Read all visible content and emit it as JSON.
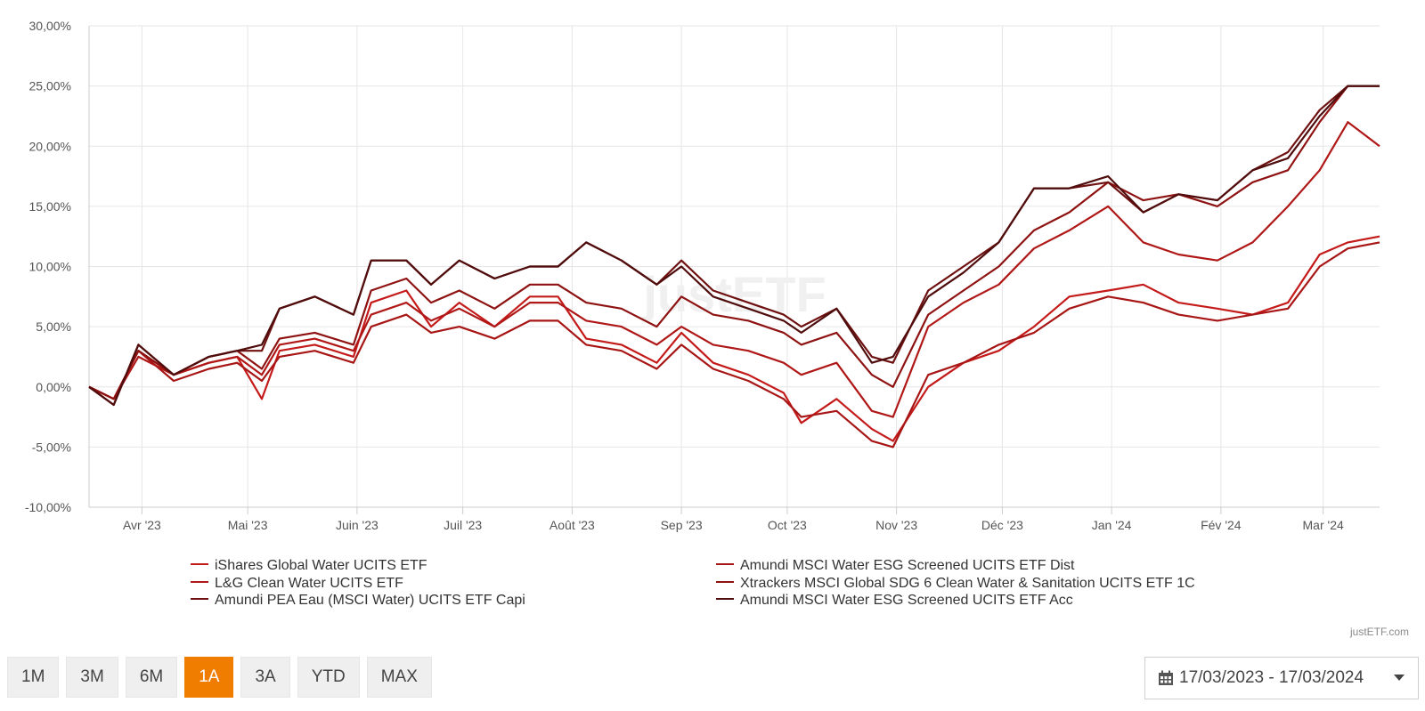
{
  "chart_data": {
    "type": "line",
    "title": "",
    "xlabel": "",
    "ylabel": "",
    "ylim": [
      -10,
      30
    ],
    "x_range": [
      "2023-03-17",
      "2024-03-17"
    ],
    "grid": true,
    "legend_position": "bottom",
    "y_ticks": [
      -10,
      -5,
      0,
      5,
      10,
      15,
      20,
      25,
      30
    ],
    "y_tick_labels": [
      "-10,00%",
      "-5,00%",
      "0,00%",
      "5,00%",
      "10,00%",
      "15,00%",
      "20,00%",
      "25,00%",
      "30,00%"
    ],
    "x_tick_dates": [
      "2023-04-01",
      "2023-05-01",
      "2023-06-01",
      "2023-07-01",
      "2023-08-01",
      "2023-09-01",
      "2023-10-01",
      "2023-11-01",
      "2023-12-01",
      "2024-01-01",
      "2024-02-01",
      "2024-03-01"
    ],
    "x_tick_labels": [
      "Avr '23",
      "Mai '23",
      "Juin '23",
      "Juil '23",
      "Août '23",
      "Sep '23",
      "Oct '23",
      "Nov '23",
      "Déc '23",
      "Jan '24",
      "Fév '24",
      "Mar '24"
    ],
    "watermark": "justETF",
    "series": [
      {
        "name": "iShares Global Water UCITS ETF",
        "color": "#c41a1a",
        "x": [
          "2023-03-17",
          "2023-03-24",
          "2023-03-31",
          "2023-04-10",
          "2023-04-20",
          "2023-04-28",
          "2023-05-05",
          "2023-05-10",
          "2023-05-20",
          "2023-05-31",
          "2023-06-05",
          "2023-06-15",
          "2023-06-22",
          "2023-06-30",
          "2023-07-10",
          "2023-07-20",
          "2023-07-28",
          "2023-08-05",
          "2023-08-15",
          "2023-08-25",
          "2023-09-01",
          "2023-09-10",
          "2023-09-20",
          "2023-09-30",
          "2023-10-05",
          "2023-10-15",
          "2023-10-25",
          "2023-10-31",
          "2023-11-10",
          "2023-11-20",
          "2023-11-30",
          "2023-12-10",
          "2023-12-20",
          "2023-12-31",
          "2024-01-10",
          "2024-01-20",
          "2024-01-31",
          "2024-02-10",
          "2024-02-20",
          "2024-02-29",
          "2024-03-08",
          "2024-03-17"
        ],
        "values": [
          0,
          -1,
          3,
          1,
          2,
          2.5,
          -1,
          3,
          3.5,
          2.5,
          7,
          8,
          5,
          7,
          5,
          7.5,
          7.5,
          4,
          3.5,
          2,
          4.5,
          2,
          1,
          -0.5,
          -3,
          -1,
          -3.5,
          -4.5,
          0,
          2,
          3,
          5,
          7.5,
          8,
          8.5,
          7,
          6.5,
          6,
          7,
          11,
          12,
          12.5
        ]
      },
      {
        "name": "Amundi MSCI Water ESG Screened UCITS ETF Dist",
        "color": "#a81515",
        "x": [
          "2023-03-17",
          "2023-03-24",
          "2023-03-31",
          "2023-04-10",
          "2023-04-20",
          "2023-04-28",
          "2023-05-05",
          "2023-05-10",
          "2023-05-20",
          "2023-05-31",
          "2023-06-05",
          "2023-06-15",
          "2023-06-22",
          "2023-06-30",
          "2023-07-10",
          "2023-07-20",
          "2023-07-28",
          "2023-08-05",
          "2023-08-15",
          "2023-08-25",
          "2023-09-01",
          "2023-09-10",
          "2023-09-20",
          "2023-09-30",
          "2023-10-05",
          "2023-10-15",
          "2023-10-25",
          "2023-10-31",
          "2023-11-10",
          "2023-11-20",
          "2023-11-30",
          "2023-12-10",
          "2023-12-20",
          "2023-12-31",
          "2024-01-10",
          "2024-01-20",
          "2024-01-31",
          "2024-02-10",
          "2024-02-20",
          "2024-02-29",
          "2024-03-08",
          "2024-03-17"
        ],
        "values": [
          0,
          -1,
          3,
          0.5,
          1.5,
          2,
          0.5,
          2.5,
          3,
          2,
          5,
          6,
          4.5,
          5,
          4,
          5.5,
          5.5,
          3.5,
          3,
          1.5,
          3.5,
          1.5,
          0.5,
          -1,
          -2.5,
          -2,
          -4.5,
          -5,
          1,
          2,
          3.5,
          4.5,
          6.5,
          7.5,
          7,
          6,
          5.5,
          6,
          6.5,
          10,
          11.5,
          12
        ]
      },
      {
        "name": "L&G Clean Water UCITS ETF",
        "color": "#b01818",
        "x": [
          "2023-03-17",
          "2023-03-24",
          "2023-03-31",
          "2023-04-10",
          "2023-04-20",
          "2023-04-28",
          "2023-05-05",
          "2023-05-10",
          "2023-05-20",
          "2023-05-31",
          "2023-06-05",
          "2023-06-15",
          "2023-06-22",
          "2023-06-30",
          "2023-07-10",
          "2023-07-20",
          "2023-07-28",
          "2023-08-05",
          "2023-08-15",
          "2023-08-25",
          "2023-09-01",
          "2023-09-10",
          "2023-09-20",
          "2023-09-30",
          "2023-10-05",
          "2023-10-15",
          "2023-10-25",
          "2023-10-31",
          "2023-11-10",
          "2023-11-20",
          "2023-11-30",
          "2023-12-10",
          "2023-12-20",
          "2023-12-31",
          "2024-01-10",
          "2024-01-20",
          "2024-01-31",
          "2024-02-10",
          "2024-02-20",
          "2024-02-29",
          "2024-03-08",
          "2024-03-17"
        ],
        "values": [
          0,
          -1,
          2.5,
          1,
          2,
          2.5,
          1,
          3.5,
          4,
          3,
          6,
          7,
          5.5,
          6.5,
          5,
          7,
          7,
          5.5,
          5,
          3.5,
          5,
          3.5,
          3,
          2,
          1,
          2,
          -2,
          -2.5,
          5,
          7,
          8.5,
          11.5,
          13,
          15,
          12,
          11,
          10.5,
          12,
          15,
          18,
          22,
          20
        ]
      },
      {
        "name": "Xtrackers MSCI Global SDG 6 Clean Water & Sanitation UCITS ETF 1C",
        "color": "#8e1212",
        "x": [
          "2023-03-17",
          "2023-03-24",
          "2023-03-31",
          "2023-04-10",
          "2023-04-20",
          "2023-04-28",
          "2023-05-05",
          "2023-05-10",
          "2023-05-20",
          "2023-05-31",
          "2023-06-05",
          "2023-06-15",
          "2023-06-22",
          "2023-06-30",
          "2023-07-10",
          "2023-07-20",
          "2023-07-28",
          "2023-08-05",
          "2023-08-15",
          "2023-08-25",
          "2023-09-01",
          "2023-09-10",
          "2023-09-20",
          "2023-09-30",
          "2023-10-05",
          "2023-10-15",
          "2023-10-25",
          "2023-10-31",
          "2023-11-10",
          "2023-11-20",
          "2023-11-30",
          "2023-12-10",
          "2023-12-20",
          "2023-12-31",
          "2024-01-10",
          "2024-01-20",
          "2024-01-31",
          "2024-02-10",
          "2024-02-20",
          "2024-02-29",
          "2024-03-08",
          "2024-03-17"
        ],
        "values": [
          0,
          -1,
          3,
          1,
          2.5,
          3,
          1.5,
          4,
          4.5,
          3.5,
          8,
          9,
          7,
          8,
          6.5,
          8.5,
          8.5,
          7,
          6.5,
          5,
          7.5,
          6,
          5.5,
          4.5,
          3.5,
          4.5,
          1,
          0,
          6,
          8,
          10,
          13,
          14.5,
          17,
          15.5,
          16,
          15,
          17,
          18,
          22,
          25,
          25
        ]
      },
      {
        "name": "Amundi PEA Eau (MSCI Water) UCITS ETF Capi",
        "color": "#6e1010",
        "x": [
          "2023-03-17",
          "2023-03-24",
          "2023-03-31",
          "2023-04-10",
          "2023-04-20",
          "2023-04-28",
          "2023-05-05",
          "2023-05-10",
          "2023-05-20",
          "2023-05-31",
          "2023-06-05",
          "2023-06-15",
          "2023-06-22",
          "2023-06-30",
          "2023-07-10",
          "2023-07-20",
          "2023-07-28",
          "2023-08-05",
          "2023-08-15",
          "2023-08-25",
          "2023-09-01",
          "2023-09-10",
          "2023-09-20",
          "2023-09-30",
          "2023-10-05",
          "2023-10-15",
          "2023-10-25",
          "2023-10-31",
          "2023-11-10",
          "2023-11-20",
          "2023-11-30",
          "2023-12-10",
          "2023-12-20",
          "2023-12-31",
          "2024-01-10",
          "2024-01-20",
          "2024-01-31",
          "2024-02-10",
          "2024-02-20",
          "2024-02-29",
          "2024-03-08",
          "2024-03-17"
        ],
        "values": [
          0,
          -1.5,
          3.5,
          1,
          2.5,
          3,
          3,
          6.5,
          7.5,
          6,
          10.5,
          10.5,
          8.5,
          10.5,
          9,
          10,
          10,
          12,
          10.5,
          8.5,
          10.5,
          8,
          7,
          6,
          5,
          6.5,
          2.5,
          2,
          8,
          10,
          12,
          16.5,
          16.5,
          17,
          14.5,
          16,
          15.5,
          18,
          19.5,
          23,
          25,
          25
        ]
      },
      {
        "name": "Amundi MSCI Water ESG Screened UCITS ETF Acc",
        "color": "#4f0d0d",
        "x": [
          "2023-03-17",
          "2023-03-24",
          "2023-03-31",
          "2023-04-10",
          "2023-04-20",
          "2023-04-28",
          "2023-05-05",
          "2023-05-10",
          "2023-05-20",
          "2023-05-31",
          "2023-06-05",
          "2023-06-15",
          "2023-06-22",
          "2023-06-30",
          "2023-07-10",
          "2023-07-20",
          "2023-07-28",
          "2023-08-05",
          "2023-08-15",
          "2023-08-25",
          "2023-09-01",
          "2023-09-10",
          "2023-09-20",
          "2023-09-30",
          "2023-10-05",
          "2023-10-15",
          "2023-10-25",
          "2023-10-31",
          "2023-11-10",
          "2023-11-20",
          "2023-11-30",
          "2023-12-10",
          "2023-12-20",
          "2023-12-31",
          "2024-01-10",
          "2024-01-20",
          "2024-01-31",
          "2024-02-10",
          "2024-02-20",
          "2024-02-29",
          "2024-03-08",
          "2024-03-17"
        ],
        "values": [
          0,
          -1.5,
          3.5,
          1,
          2.5,
          3,
          3.5,
          6.5,
          7.5,
          6,
          10.5,
          10.5,
          8.5,
          10.5,
          9,
          10,
          10,
          12,
          10.5,
          8.5,
          10,
          7.5,
          6.5,
          5.5,
          4.5,
          6.5,
          2,
          2.5,
          7.5,
          9.5,
          12,
          16.5,
          16.5,
          17.5,
          14.5,
          16,
          15.5,
          18,
          19,
          22.5,
          25,
          25
        ]
      }
    ]
  },
  "footer": {
    "credit": "justETF.com"
  },
  "range_buttons": [
    {
      "label": "1M",
      "active": false
    },
    {
      "label": "3M",
      "active": false
    },
    {
      "label": "6M",
      "active": false
    },
    {
      "label": "1A",
      "active": true
    },
    {
      "label": "3A",
      "active": false
    },
    {
      "label": "YTD",
      "active": false
    },
    {
      "label": "MAX",
      "active": false
    }
  ],
  "date_range": {
    "label": "17/03/2023 - 17/03/2024"
  },
  "icons": {
    "calendar": "calendar-icon",
    "caret": "caret-down-icon"
  },
  "colors": {
    "accent": "#f07c00",
    "grid": "#e6e6e6"
  }
}
